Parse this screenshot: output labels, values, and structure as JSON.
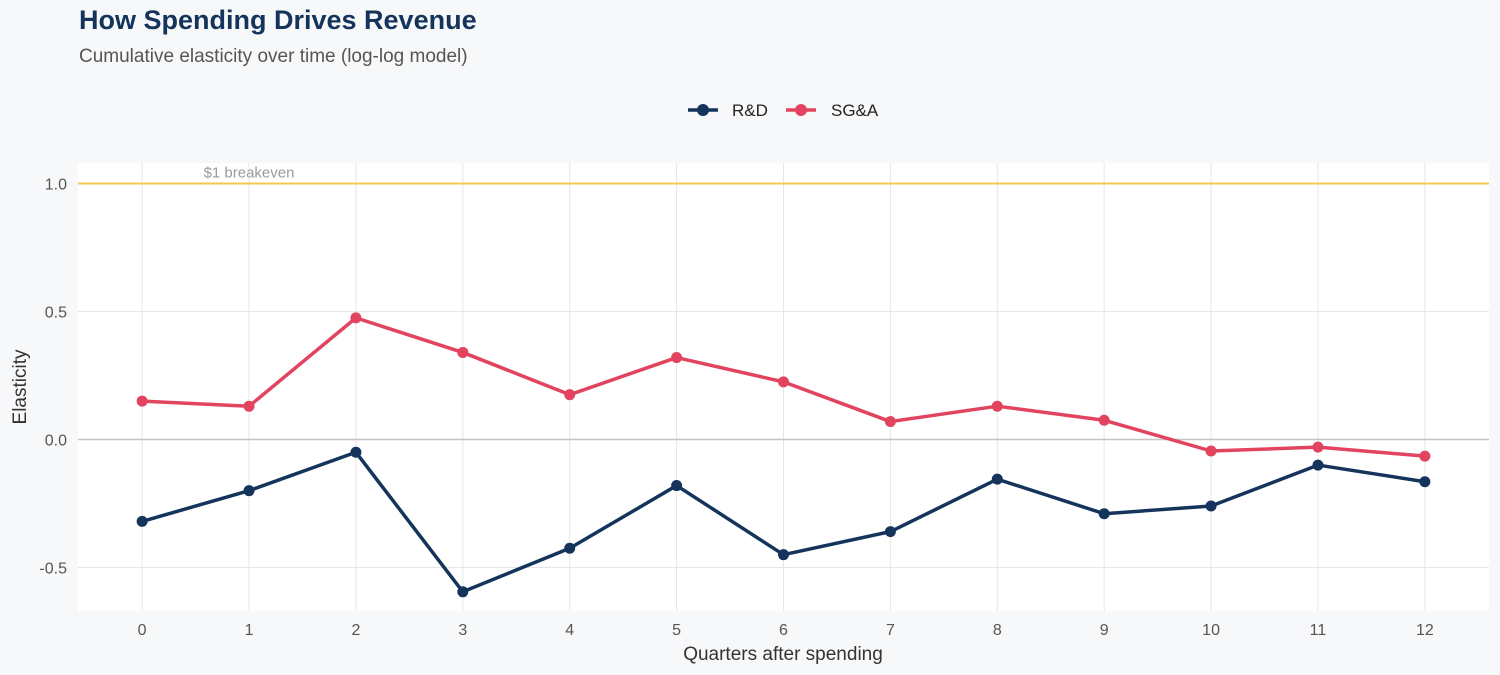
{
  "chart_data": {
    "type": "line",
    "title": "How Spending Drives Revenue",
    "subtitle": "Cumulative elasticity over time (log-log model)",
    "xlabel": "Quarters after spending",
    "ylabel": "Elasticity",
    "x": [
      0,
      1,
      2,
      3,
      4,
      5,
      6,
      7,
      8,
      9,
      10,
      11,
      12
    ],
    "x_tick_labels": [
      "0",
      "1",
      "2",
      "3",
      "4",
      "5",
      "6",
      "7",
      "8",
      "9",
      "10",
      "11",
      "12"
    ],
    "y_tick_values": [
      -0.5,
      0.0,
      0.5,
      1.0
    ],
    "y_tick_labels": [
      "-0.5",
      "0.0",
      "0.5",
      "1.0"
    ],
    "xlim": [
      -0.6,
      12.6
    ],
    "ylim": [
      -0.67,
      1.08
    ],
    "grid": true,
    "legend_position": "top-center",
    "series": [
      {
        "name": "R&D",
        "color": "#14345c",
        "values": [
          -0.32,
          -0.2,
          -0.05,
          -0.595,
          -0.425,
          -0.18,
          -0.45,
          -0.36,
          -0.155,
          -0.29,
          -0.26,
          -0.1,
          -0.165
        ]
      },
      {
        "name": "SG&A",
        "color": "#e2445f",
        "values": [
          0.15,
          0.13,
          0.475,
          0.34,
          0.175,
          0.32,
          0.225,
          0.07,
          0.13,
          0.075,
          -0.045,
          -0.03,
          -0.065
        ]
      }
    ],
    "reference_line": {
      "y": 1.0,
      "label": "$1 breakeven",
      "color": "#f2c94c"
    },
    "zero_line_color": "#c4c4c4"
  }
}
